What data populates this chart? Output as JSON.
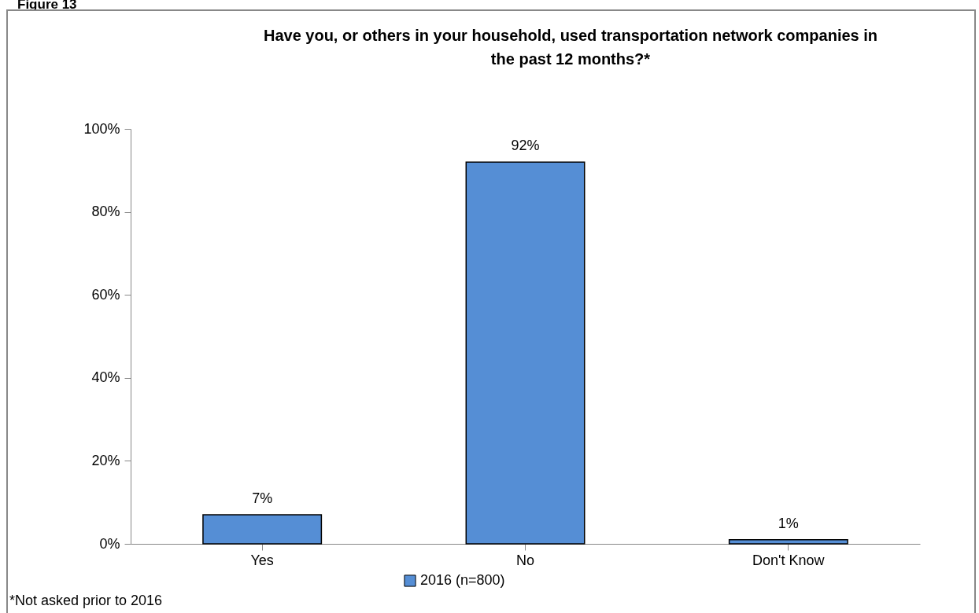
{
  "chart_data": {
    "type": "bar",
    "title": "Have you, or others in your household, used transportation network companies in the past 12 months?*",
    "categories": [
      "Yes",
      "No",
      "Don't Know"
    ],
    "series": [
      {
        "name": "2016 (n=800)",
        "color": "#558ed5",
        "values": [
          7,
          92,
          1
        ],
        "value_labels": [
          "7%",
          "92%",
          "1%"
        ]
      }
    ],
    "ylim": [
      0,
      100
    ],
    "yticks": [
      {
        "value": 0,
        "label": "0%"
      },
      {
        "value": 20,
        "label": "20%"
      },
      {
        "value": 40,
        "label": "40%"
      },
      {
        "value": 60,
        "label": "60%"
      },
      {
        "value": 80,
        "label": "80%"
      },
      {
        "value": 100,
        "label": "100%"
      }
    ],
    "grid": false,
    "legend": "bottom",
    "annotations": [
      "Figure 13",
      "*Not asked prior to 2016"
    ]
  }
}
